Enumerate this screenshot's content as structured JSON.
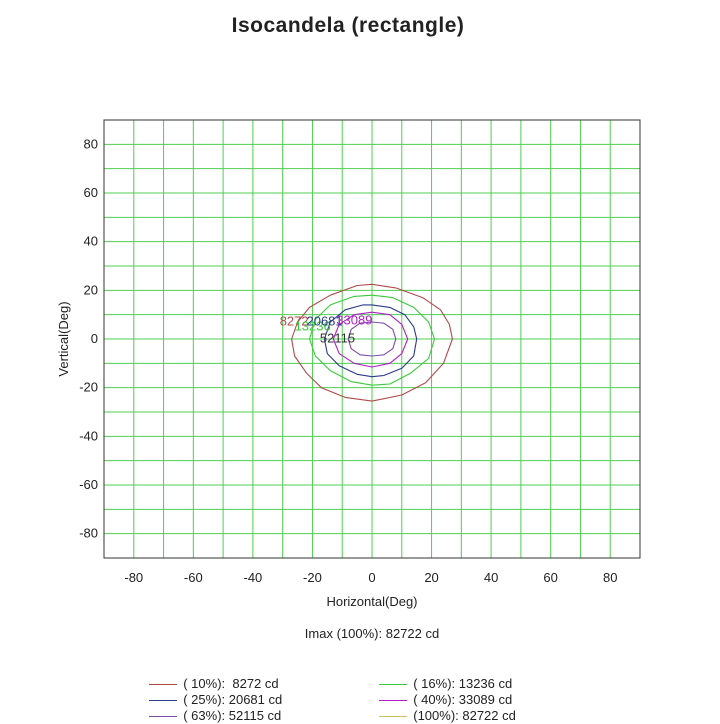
{
  "chart_data": {
    "type": "contour",
    "title": "Isocandela (rectangle)",
    "xlabel": "Horizontal(Deg)",
    "ylabel": "Vertical(Deg)",
    "xlim": [
      -90,
      90
    ],
    "ylim": [
      -90,
      90
    ],
    "grid": true,
    "grid_step": 10,
    "x_ticks": [
      "-80",
      "-60",
      "-40",
      "-20",
      "0",
      "20",
      "40",
      "60",
      "80"
    ],
    "y_ticks": [
      "80",
      "60",
      "40",
      "20",
      "0",
      "-20",
      "-40",
      "-60",
      "-80"
    ],
    "imax_text": "Imax (100%): 82722 cd",
    "contours": [
      {
        "id": "c10",
        "percent": 10,
        "value": 8272,
        "color": "#b04a4a",
        "points": [
          [
            -27,
            0
          ],
          [
            -25,
            7
          ],
          [
            -21,
            13
          ],
          [
            -14,
            18
          ],
          [
            -5,
            22
          ],
          [
            0,
            22.5
          ],
          [
            8,
            21
          ],
          [
            17,
            17
          ],
          [
            23,
            12
          ],
          [
            26,
            6
          ],
          [
            27,
            0
          ],
          [
            24,
            -10
          ],
          [
            18,
            -18
          ],
          [
            10,
            -23
          ],
          [
            0,
            -25.5
          ],
          [
            -9,
            -24
          ],
          [
            -17,
            -20
          ],
          [
            -22,
            -14
          ],
          [
            -26,
            -7
          ]
        ]
      },
      {
        "id": "c16",
        "percent": 16,
        "value": 13236,
        "color": "#3cc83c",
        "points": [
          [
            -21,
            0
          ],
          [
            -19,
            8
          ],
          [
            -14,
            14
          ],
          [
            -6,
            17.5
          ],
          [
            0,
            18
          ],
          [
            7,
            17
          ],
          [
            14,
            13
          ],
          [
            19,
            7
          ],
          [
            21,
            0
          ],
          [
            19,
            -8
          ],
          [
            13,
            -14
          ],
          [
            6,
            -18.5
          ],
          [
            0,
            -19
          ],
          [
            -7,
            -17.5
          ],
          [
            -14,
            -13
          ],
          [
            -19,
            -7
          ]
        ]
      },
      {
        "id": "c25",
        "percent": 25,
        "value": 20681,
        "color": "#2a3a8c",
        "points": [
          [
            -16,
            0
          ],
          [
            -14,
            7
          ],
          [
            -9,
            12
          ],
          [
            -3,
            14
          ],
          [
            0,
            14
          ],
          [
            6,
            13
          ],
          [
            11,
            10
          ],
          [
            14,
            5
          ],
          [
            15,
            0
          ],
          [
            14,
            -7
          ],
          [
            10,
            -12
          ],
          [
            4,
            -15
          ],
          [
            0,
            -15.5
          ],
          [
            -5,
            -14.5
          ],
          [
            -11,
            -11
          ],
          [
            -15,
            -6
          ]
        ]
      },
      {
        "id": "c40",
        "percent": 40,
        "value": 33089,
        "color": "#b020c8",
        "points": [
          [
            -13,
            0
          ],
          [
            -11,
            6
          ],
          [
            -6,
            10
          ],
          [
            0,
            11
          ],
          [
            6,
            10
          ],
          [
            10,
            6
          ],
          [
            12,
            0
          ],
          [
            10,
            -6
          ],
          [
            6,
            -10
          ],
          [
            0,
            -11.5
          ],
          [
            -6,
            -10
          ],
          [
            -11,
            -6
          ]
        ]
      },
      {
        "id": "c63",
        "percent": 63,
        "value": 52115,
        "color": "#7a4aa8",
        "points": [
          [
            -8,
            0
          ],
          [
            -7,
            4
          ],
          [
            -4,
            6.5
          ],
          [
            0,
            7
          ],
          [
            4,
            6.5
          ],
          [
            7,
            4
          ],
          [
            8,
            0
          ],
          [
            7,
            -4
          ],
          [
            4,
            -6.5
          ],
          [
            0,
            -7
          ],
          [
            -4,
            -6.5
          ],
          [
            -7,
            -4
          ]
        ]
      }
    ],
    "contour_labels": [
      {
        "text": "8272",
        "color": "#b04a4a",
        "x": -31,
        "y": 5.5
      },
      {
        "text": "13236",
        "color": "#3cc83c",
        "x": -26,
        "y": 3.5
      },
      {
        "text": "20681",
        "color": "#2a3a8c",
        "x": -22,
        "y": 5.5
      },
      {
        "text": "33089",
        "color": "#b020c8",
        "x": -12,
        "y": 6
      },
      {
        "text": "52115",
        "color": "#333333",
        "x": -17.5,
        "y": -1.5
      }
    ],
    "legend": [
      {
        "label": "( 10%):  8272 cd",
        "color": "#b04a4a"
      },
      {
        "label": "( 16%): 13236 cd",
        "color": "#3cc83c"
      },
      {
        "label": "( 25%): 20681 cd",
        "color": "#2a3a8c"
      },
      {
        "label": "( 40%): 33089 cd",
        "color": "#b020c8"
      },
      {
        "label": "( 63%): 52115 cd",
        "color": "#7a4aa8"
      },
      {
        "label": "(100%): 82722 cd",
        "color": "#c8c060"
      }
    ]
  }
}
